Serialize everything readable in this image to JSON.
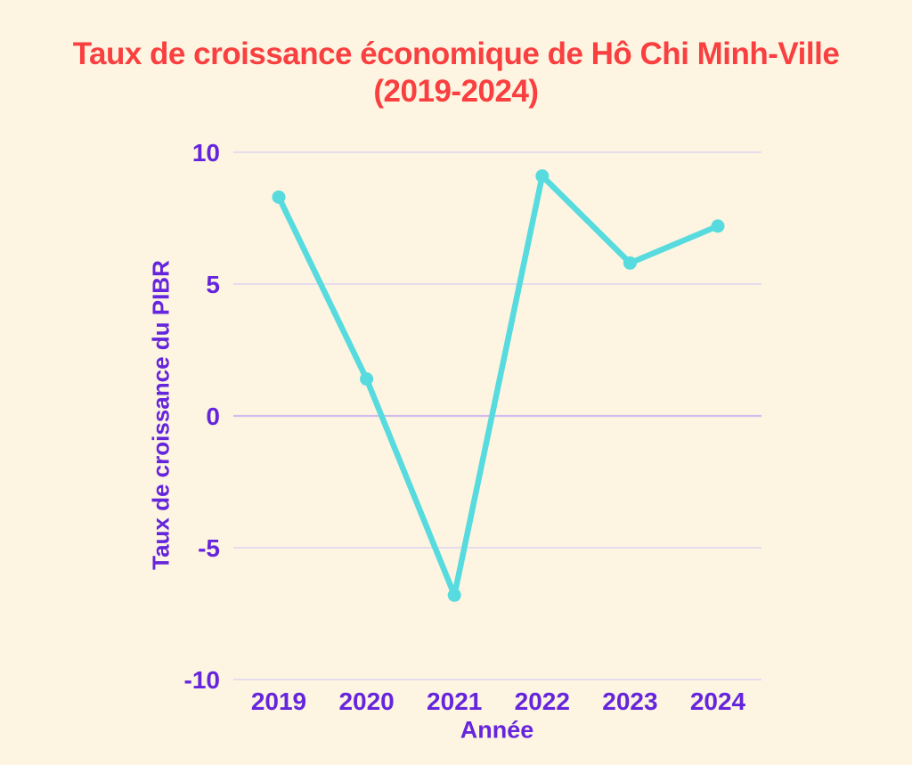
{
  "title": {
    "line1": "Taux de croissance économique de Hô Chi Minh-Ville",
    "line2": "(2019-2024)"
  },
  "colors": {
    "background": "#fdf5e1",
    "title": "#f93f40",
    "axis_text": "#6525dc",
    "line": "#57dbdf",
    "grid": "#ddd3f1",
    "zero_grid": "#d2bcee"
  },
  "chart_data": {
    "type": "line",
    "title": "Taux de croissance économique de Hô Chi Minh-Ville (2019-2024)",
    "categories": [
      "2019",
      "2020",
      "2021",
      "2022",
      "2023",
      "2024"
    ],
    "series": [
      {
        "name": "Taux de croissance du PIBR",
        "values": [
          8.3,
          1.4,
          -6.8,
          9.1,
          5.8,
          7.2
        ]
      }
    ],
    "xlabel": "Année",
    "ylabel": "Taux de croissance du PIBR",
    "ylim": [
      -10,
      10
    ],
    "yticks": [
      10,
      5,
      0,
      -5,
      -10
    ],
    "grid": true,
    "legend": false,
    "marker": "circle"
  }
}
